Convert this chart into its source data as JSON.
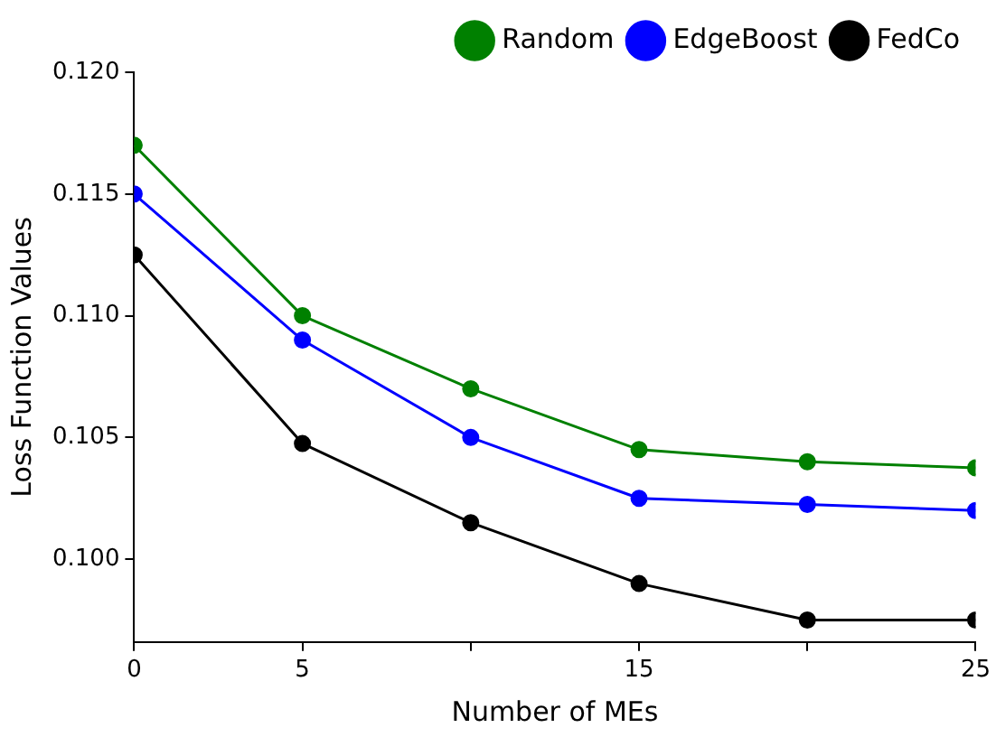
{
  "chart_data": {
    "type": "line",
    "xlabel": "Number of MEs",
    "ylabel": "Loss Function Values",
    "x": [
      0,
      5,
      10,
      15,
      20,
      25
    ],
    "series": [
      {
        "name": "Random",
        "color": "#008000",
        "values": [
          0.117,
          0.11,
          0.107,
          0.1045,
          0.104,
          0.10375
        ]
      },
      {
        "name": "EdgeBoost",
        "color": "#0000ff",
        "values": [
          0.115,
          0.109,
          0.105,
          0.1025,
          0.10225,
          0.102
        ]
      },
      {
        "name": "FedCo",
        "color": "#000000",
        "values": [
          0.1125,
          0.10475,
          0.1015,
          0.099,
          0.0975,
          0.0975
        ]
      }
    ],
    "xlim": [
      0,
      25
    ],
    "xticks": [
      0,
      5,
      {
        "value": 10,
        "label": null
      },
      15,
      {
        "value": 20,
        "label": null
      },
      25
    ],
    "ylim": [
      0.0966,
      0.12
    ],
    "yticks": [
      {
        "value": 0.1,
        "label": "0.100"
      },
      {
        "value": 0.105,
        "label": "0.105"
      },
      {
        "value": 0.11,
        "label": "0.110"
      },
      {
        "value": 0.115,
        "label": "0.115"
      },
      {
        "value": 0.12,
        "label": "0.120"
      }
    ],
    "grid": false,
    "legend": "top right",
    "marker": "circle",
    "line_style": "solid"
  }
}
